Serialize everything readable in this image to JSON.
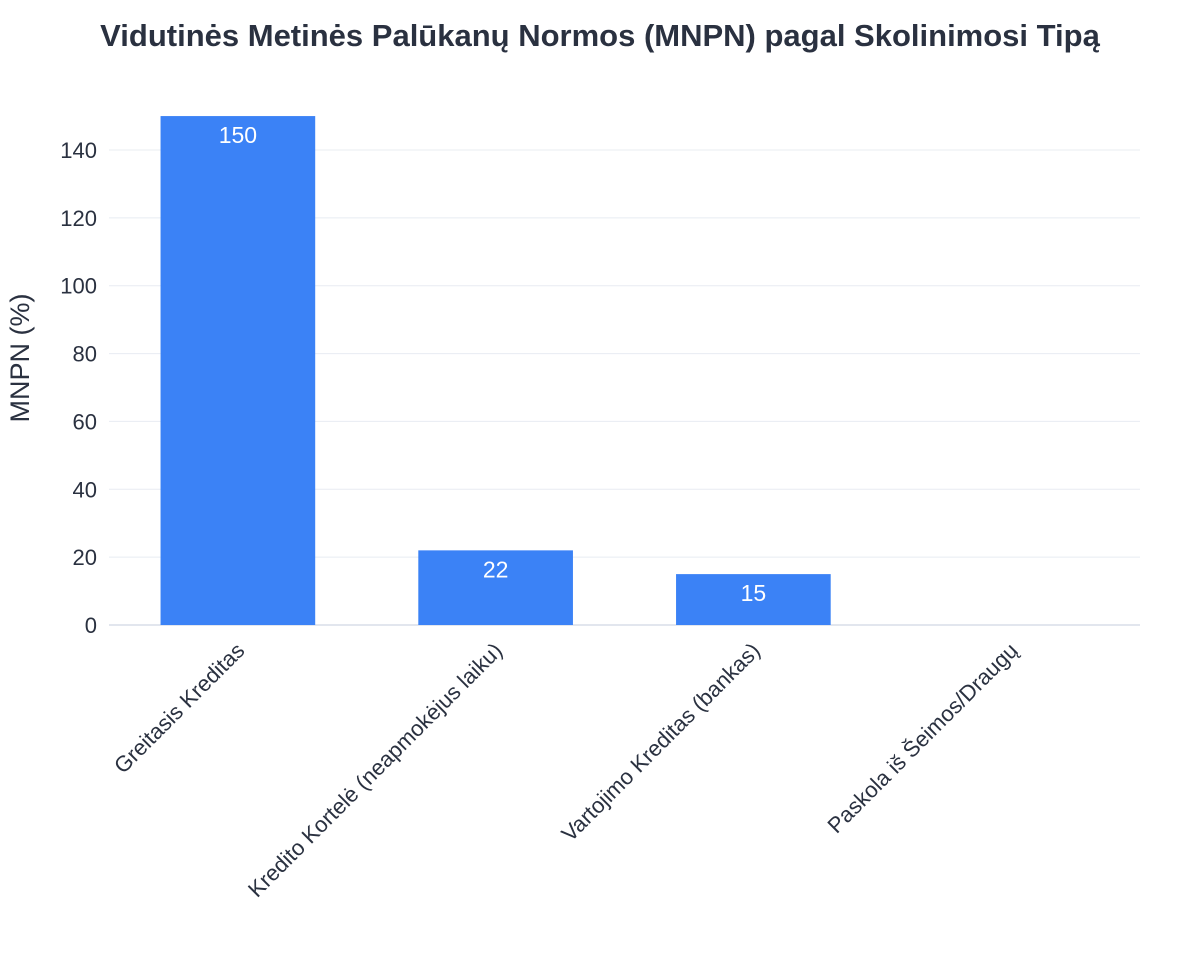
{
  "chart_data": {
    "type": "bar",
    "title": "Vidutinės Metinės Palūkanų Normos (MNPN) pagal Skolinimosi Tipą",
    "xlabel": "",
    "ylabel": "MNPN (%)",
    "categories": [
      "Greitasis Kreditas",
      "Kredito Kortelė (neapmokėjus laiku)",
      "Vartojimo Kreditas (bankas)",
      "Paskola iš Šeimos/Draugų"
    ],
    "values": [
      150,
      22,
      15,
      0
    ],
    "data_labels": [
      "150",
      "22",
      "15",
      ""
    ],
    "ylim": [
      0,
      150
    ],
    "yticks": [
      0,
      20,
      40,
      60,
      80,
      100,
      120,
      140
    ],
    "grid": true,
    "bar_color": "#3b82f6",
    "grid_color": "#e8ecf2",
    "text_color": "#2a3140"
  }
}
